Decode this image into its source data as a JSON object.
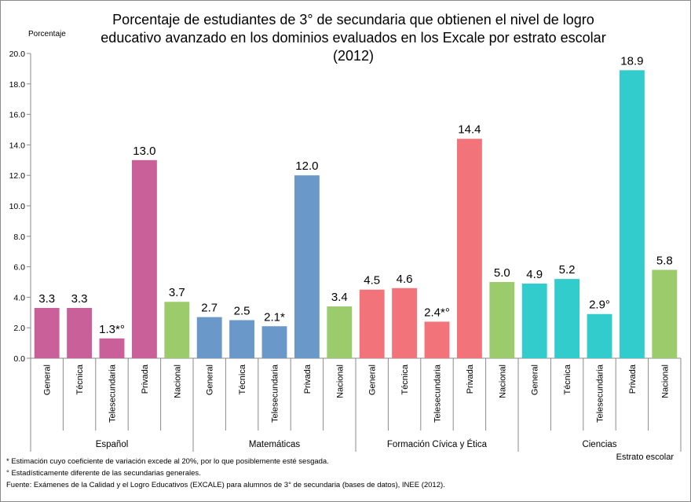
{
  "chart_data": {
    "type": "bar",
    "title_lines": [
      "Porcentaje de estudiantes de 3° de secundaria que obtienen el nivel de logro",
      "educativo avanzado en los dominios evaluados en los Excale por estrato escolar",
      "(2012)"
    ],
    "ylabel": "Porcentaje",
    "xlabel": "Estrato escolar",
    "ylim": [
      0,
      20
    ],
    "yticks": [
      "0.0",
      "2.0",
      "4.0",
      "6.0",
      "8.0",
      "10.0",
      "12.0",
      "14.0",
      "16.0",
      "18.0",
      "20.0"
    ],
    "grid": false,
    "groups": [
      {
        "name": "Español",
        "color": "#C9609A",
        "bars": [
          {
            "category": "General",
            "value": 3.3,
            "label": "3.3"
          },
          {
            "category": "Técnica",
            "value": 3.3,
            "label": "3.3"
          },
          {
            "category": "Telesecundaria",
            "value": 1.3,
            "label": "1.3*°"
          },
          {
            "category": "Privada",
            "value": 13.0,
            "label": "13.0"
          },
          {
            "category": "Nacional",
            "value": 3.7,
            "label": "3.7",
            "color": "#9BCB6A"
          }
        ]
      },
      {
        "name": "Matemáticas",
        "color": "#6A98C8",
        "bars": [
          {
            "category": "General",
            "value": 2.7,
            "label": "2.7"
          },
          {
            "category": "Técnica",
            "value": 2.5,
            "label": "2.5"
          },
          {
            "category": "Telesecundaria",
            "value": 2.1,
            "label": "2.1*"
          },
          {
            "category": "Privada",
            "value": 12.0,
            "label": "12.0"
          },
          {
            "category": "Nacional",
            "value": 3.4,
            "label": "3.4",
            "color": "#9BCB6A"
          }
        ]
      },
      {
        "name": "Formación Cívica y Ética",
        "color": "#F2747A",
        "bars": [
          {
            "category": "General",
            "value": 4.5,
            "label": "4.5"
          },
          {
            "category": "Técnica",
            "value": 4.6,
            "label": "4.6"
          },
          {
            "category": "Telesecundaria",
            "value": 2.4,
            "label": "2.4*°"
          },
          {
            "category": "Privada",
            "value": 14.4,
            "label": "14.4"
          },
          {
            "category": "Nacional",
            "value": 5.0,
            "label": "5.0",
            "color": "#9BCB6A"
          }
        ]
      },
      {
        "name": "Ciencias",
        "color": "#33CCCC",
        "bars": [
          {
            "category": "General",
            "value": 4.9,
            "label": "4.9"
          },
          {
            "category": "Técnica",
            "value": 5.2,
            "label": "5.2"
          },
          {
            "category": "Telesecundaria",
            "value": 2.9,
            "label": "2.9°"
          },
          {
            "category": "Privada",
            "value": 18.9,
            "label": "18.9"
          },
          {
            "category": "Nacional",
            "value": 5.8,
            "label": "5.8",
            "color": "#9BCB6A"
          }
        ]
      }
    ]
  },
  "notes": [
    "* Estimación cuyo coeficiente de variación excede al 20%, por lo que posiblemente esté sesgada.",
    "° Estadísticamente diferente de las secundarias generales.",
    "Fuente: Exámenes de la Calidad y el Logro Educativos (EXCALE) para alumnos de 3° de secundaria (bases de datos), INEE (2012)."
  ]
}
